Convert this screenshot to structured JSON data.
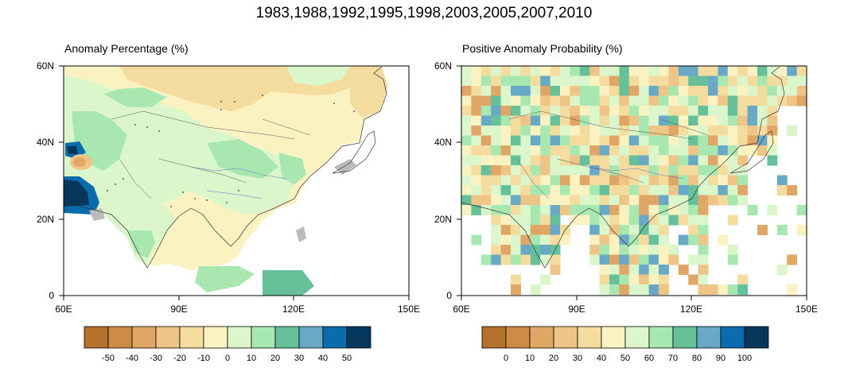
{
  "figure": {
    "title": "1983,1988,1992,1995,1998,2003,2005,2007,2010"
  },
  "panels": [
    {
      "id": "anomaly",
      "title": "Anomaly Percentage (%)",
      "x_ticks": [
        "60E",
        "90E",
        "120E",
        "150E"
      ],
      "y_ticks": [
        "60N",
        "40N",
        "20N",
        "0"
      ],
      "colorbar_labels": [
        "-50",
        "-40",
        "-30",
        "-20",
        "-10",
        "0",
        "10",
        "20",
        "30",
        "40",
        "50"
      ],
      "colorbar_colors": [
        "#b5722c",
        "#cf8a48",
        "#e0a665",
        "#eec487",
        "#f4dc9f",
        "#fbf2c2",
        "#dcf6cc",
        "#a8e8b0",
        "#66c09a",
        "#69a9c6",
        "#0a6cad",
        "#08375e"
      ]
    },
    {
      "id": "probability",
      "title": "Positive Anomaly Probability (%)",
      "x_ticks": [
        "60E",
        "90E",
        "120E",
        "150E"
      ],
      "y_ticks": [
        "60N",
        "40N",
        "20N",
        "0"
      ],
      "colorbar_labels": [
        "0",
        "10",
        "20",
        "30",
        "40",
        "50",
        "60",
        "70",
        "80",
        "90",
        "100"
      ],
      "colorbar_colors": [
        "#b5722c",
        "#cf8a48",
        "#e0a665",
        "#eec487",
        "#f4dc9f",
        "#fbf2c2",
        "#dcf6cc",
        "#a8e8b0",
        "#66c09a",
        "#69a9c6",
        "#0a6cad",
        "#08375e"
      ]
    }
  ]
}
